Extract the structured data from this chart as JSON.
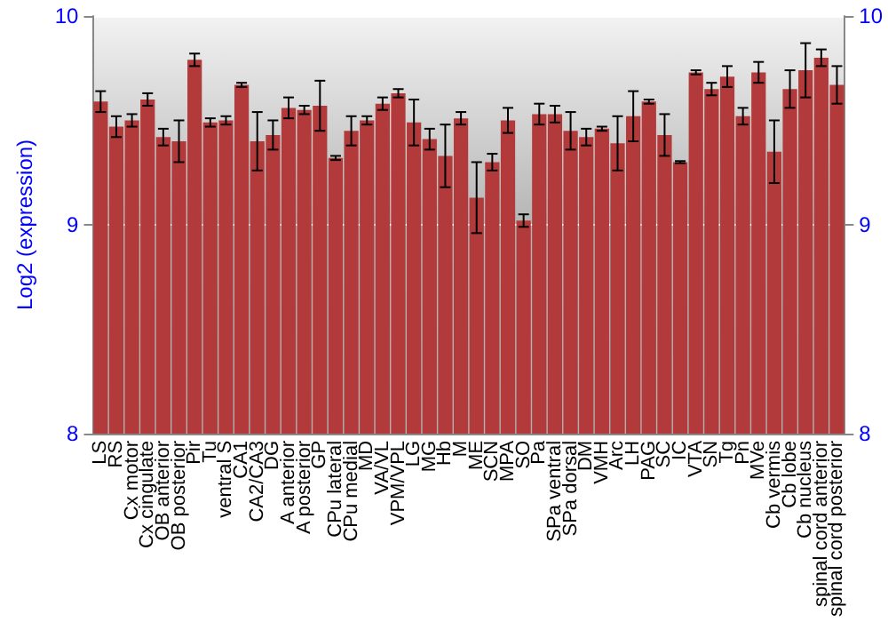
{
  "chart_data": {
    "type": "bar",
    "ylabel": "Log2 (expression)",
    "categories": [
      "LS",
      "RS",
      "Cx motor",
      "Cx cingulate",
      "OB anterior",
      "OB posterior",
      "Pir",
      "Tu",
      "ventral S",
      "CA1",
      "CA2/CA3",
      "DG",
      "A anterior",
      "A posterior",
      "GP",
      "CPu lateral",
      "CPu medial",
      "MD",
      "VA/VL",
      "VPM/VPL",
      "LG",
      "MG",
      "Hb",
      "M",
      "ME",
      "SCN",
      "MPA",
      "SO",
      "Pa",
      "SPa ventral",
      "SPa dorsal",
      "DM",
      "VMH",
      "Arc",
      "LH",
      "PAG",
      "SC",
      "IC",
      "VTA",
      "SN",
      "Tg",
      "Pn",
      "MVe",
      "Cb vermis",
      "Cb lobe",
      "Cb nucleus",
      "spinal cord anterior",
      "spinal cord posterior"
    ],
    "values": [
      9.59,
      9.47,
      9.5,
      9.6,
      9.42,
      9.4,
      9.79,
      9.49,
      9.5,
      9.67,
      9.4,
      9.43,
      9.56,
      9.55,
      9.57,
      9.32,
      9.45,
      9.5,
      9.58,
      9.63,
      9.49,
      9.41,
      9.33,
      9.51,
      9.13,
      9.3,
      9.5,
      9.02,
      9.53,
      9.53,
      9.45,
      9.42,
      9.46,
      9.39,
      9.52,
      9.59,
      9.43,
      9.3,
      9.73,
      9.65,
      9.71,
      9.52,
      9.73,
      9.35,
      9.65,
      9.74,
      9.8,
      9.67
    ],
    "errors": [
      0.05,
      0.05,
      0.03,
      0.03,
      0.04,
      0.1,
      0.03,
      0.02,
      0.02,
      0.01,
      0.14,
      0.07,
      0.05,
      0.02,
      0.12,
      0.01,
      0.07,
      0.02,
      0.03,
      0.02,
      0.11,
      0.05,
      0.15,
      0.03,
      0.17,
      0.04,
      0.06,
      0.03,
      0.05,
      0.04,
      0.09,
      0.04,
      0.01,
      0.13,
      0.12,
      0.01,
      0.1,
      0.005,
      0.01,
      0.03,
      0.05,
      0.04,
      0.05,
      0.15,
      0.09,
      0.13,
      0.04,
      0.09
    ],
    "color": "#b33a3a",
    "ylim": [
      8,
      10
    ],
    "yticks": [
      8,
      9,
      10
    ],
    "y2lim": [
      8,
      10
    ],
    "y2ticks": [
      8,
      9,
      10
    ],
    "grid": "y"
  }
}
